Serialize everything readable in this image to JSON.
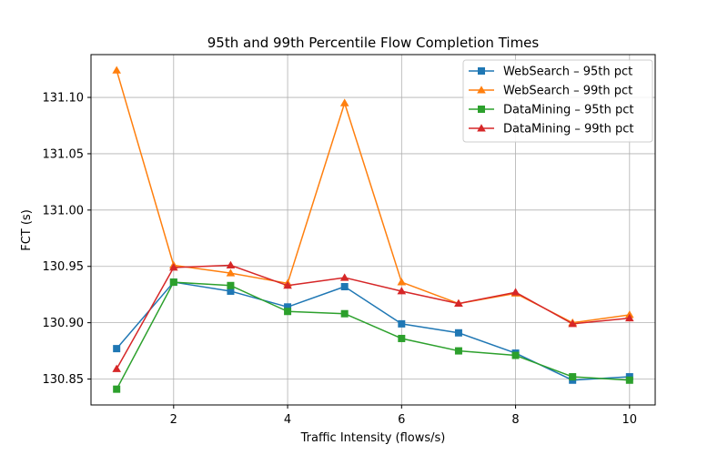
{
  "chart_data": {
    "type": "line",
    "title": "95th and 99th Percentile Flow Completion Times",
    "xlabel": "Traffic Intensity (flows/s)",
    "ylabel": "FCT (s)",
    "x": [
      1,
      2,
      3,
      4,
      5,
      6,
      7,
      8,
      9,
      10
    ],
    "xlim": [
      0.55,
      10.45
    ],
    "ylim": [
      130.827,
      131.138
    ],
    "xticks": [
      2,
      4,
      6,
      8,
      10
    ],
    "yticks": [
      130.85,
      130.9,
      130.95,
      131.0,
      131.05,
      131.1
    ],
    "xtick_labels": [
      "2",
      "4",
      "6",
      "8",
      "10"
    ],
    "ytick_labels": [
      "130.85",
      "130.90",
      "130.95",
      "131.00",
      "131.05",
      "131.10"
    ],
    "grid": true,
    "legend_position": "top-right",
    "series": [
      {
        "name": "WebSearch – 95th pct",
        "color": "#1f77b4",
        "marker": "square",
        "values": [
          130.877,
          130.936,
          130.928,
          130.914,
          130.932,
          130.899,
          130.891,
          130.873,
          130.849,
          130.852
        ]
      },
      {
        "name": "WebSearch – 99th pct",
        "color": "#ff7f0e",
        "marker": "triangle",
        "values": [
          131.124,
          130.951,
          130.944,
          130.935,
          131.095,
          130.936,
          130.917,
          130.926,
          130.9,
          130.907
        ]
      },
      {
        "name": "DataMining – 95th pct",
        "color": "#2ca02c",
        "marker": "square",
        "values": [
          130.841,
          130.936,
          130.933,
          130.91,
          130.908,
          130.886,
          130.875,
          130.871,
          130.852,
          130.849
        ]
      },
      {
        "name": "DataMining – 99th pct",
        "color": "#d62728",
        "marker": "triangle",
        "values": [
          130.859,
          130.949,
          130.951,
          130.933,
          130.94,
          130.928,
          130.917,
          130.927,
          130.899,
          130.904
        ]
      }
    ]
  }
}
